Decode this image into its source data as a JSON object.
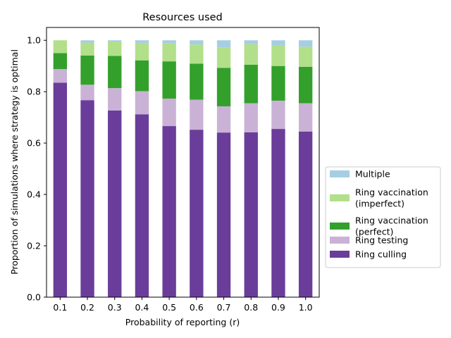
{
  "chart_data": {
    "type": "bar",
    "stacked": true,
    "title": "Resources used",
    "xlabel": "Probability of reporting (r)",
    "ylabel": "Proportion of simulations where strategy is optimal",
    "ylim": [
      0,
      1.05
    ],
    "yticks": [
      "0.0",
      "0.2",
      "0.4",
      "0.6",
      "0.8",
      "1.0"
    ],
    "categories": [
      "0.1",
      "0.2",
      "0.3",
      "0.4",
      "0.5",
      "0.6",
      "0.7",
      "0.8",
      "0.9",
      "1.0"
    ],
    "series": [
      {
        "name": "Ring culling",
        "color": "#6a3d9a",
        "values": [
          0.835,
          0.767,
          0.727,
          0.712,
          0.666,
          0.652,
          0.641,
          0.642,
          0.655,
          0.645
        ]
      },
      {
        "name": "Ring testing",
        "color": "#cab2d6",
        "values": [
          0.053,
          0.06,
          0.087,
          0.09,
          0.107,
          0.117,
          0.102,
          0.113,
          0.11,
          0.11
        ]
      },
      {
        "name": "Ring vaccination\n(perfect)",
        "color": "#33a02c",
        "values": [
          0.062,
          0.114,
          0.125,
          0.12,
          0.145,
          0.14,
          0.15,
          0.15,
          0.135,
          0.142
        ]
      },
      {
        "name": "Ring vaccination\n(imperfect)",
        "color": "#b2df8a",
        "values": [
          0.05,
          0.05,
          0.056,
          0.068,
          0.07,
          0.075,
          0.08,
          0.08,
          0.08,
          0.078
        ]
      },
      {
        "name": "Multiple",
        "color": "#a6cee3",
        "values": [
          0.0,
          0.009,
          0.005,
          0.01,
          0.012,
          0.016,
          0.027,
          0.015,
          0.02,
          0.025
        ]
      }
    ],
    "legend": {
      "placement": "center-right-outside",
      "order": [
        "Multiple",
        "Ring vaccination\n(imperfect)",
        "Ring vaccination\n(perfect)",
        "Ring testing",
        "Ring culling"
      ]
    },
    "grid": false
  }
}
